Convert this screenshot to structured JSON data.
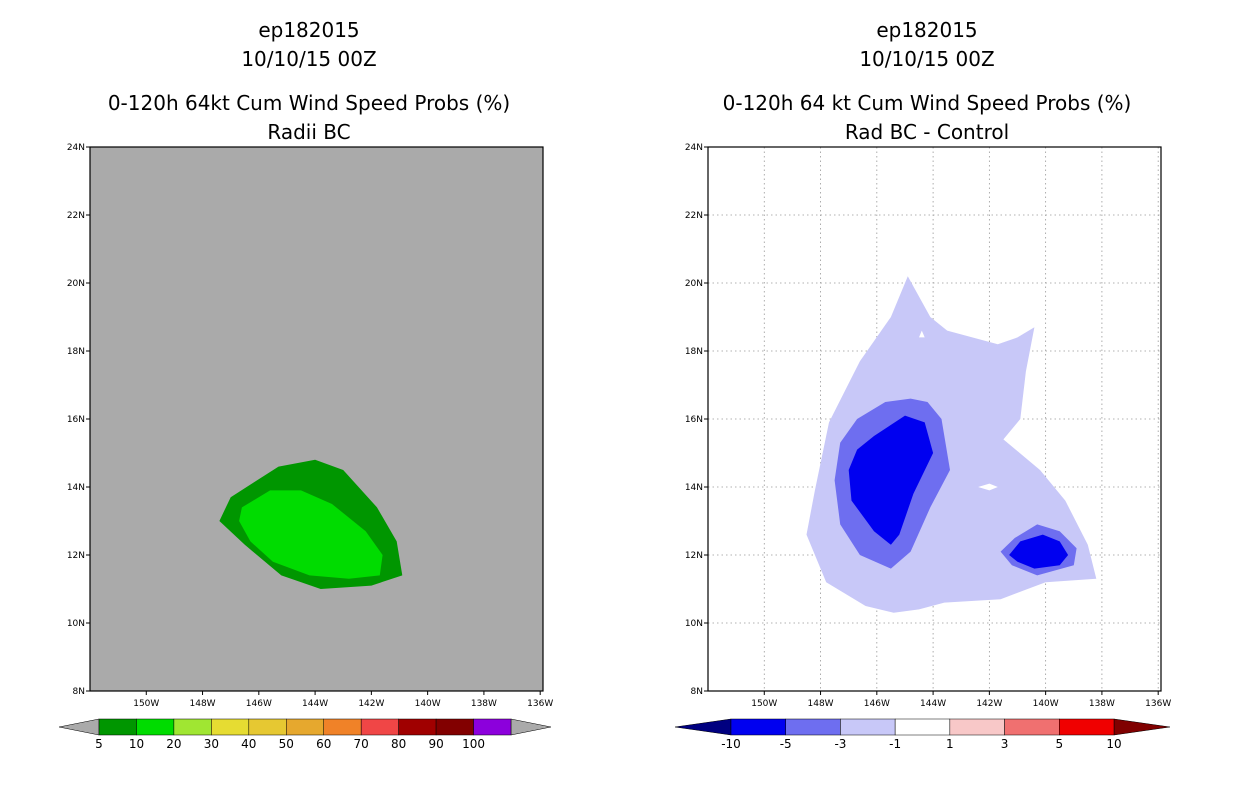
{
  "left": {
    "title_lines": [
      "ep182015",
      "10/10/15 00Z",
      "0-120h 64kt Cum Wind Speed Probs (%)",
      "Radii BC"
    ],
    "background_color": "#aaaaaa",
    "lat_labels": [
      "8N",
      "10N",
      "12N",
      "14N",
      "16N",
      "18N",
      "20N",
      "22N",
      "24N"
    ],
    "lon_labels": [
      "150W",
      "148W",
      "146W",
      "144W",
      "142W",
      "140W",
      "138W",
      "136W"
    ],
    "grid": false,
    "colorbar": {
      "labels": [
        "5",
        "10",
        "20",
        "30",
        "40",
        "50",
        "60",
        "70",
        "80",
        "90",
        "100"
      ],
      "colors": [
        "#009600",
        "#00dc00",
        "#a0e632",
        "#e6dc32",
        "#e6c832",
        "#e6a82e",
        "#f08228",
        "#f04646",
        "#a00000",
        "#820000",
        "#8c00dc"
      ],
      "under_color": "#aaaaaa",
      "over_color": "#aaaaaa"
    },
    "contours": [
      {
        "level": "5-10",
        "color": "#009600",
        "points": [
          [
            -147.0,
            13.7
          ],
          [
            -145.3,
            14.6
          ],
          [
            -144.0,
            14.8
          ],
          [
            -143.0,
            14.5
          ],
          [
            -141.8,
            13.4
          ],
          [
            -141.1,
            12.4
          ],
          [
            -140.9,
            11.4
          ],
          [
            -142.0,
            11.1
          ],
          [
            -143.8,
            11.0
          ],
          [
            -145.2,
            11.4
          ],
          [
            -146.5,
            12.3
          ],
          [
            -147.4,
            13.0
          ]
        ]
      },
      {
        "level": "10-20",
        "color": "#00dc00",
        "points": [
          [
            -146.6,
            13.4
          ],
          [
            -145.6,
            13.9
          ],
          [
            -144.5,
            13.9
          ],
          [
            -143.4,
            13.5
          ],
          [
            -142.2,
            12.7
          ],
          [
            -141.6,
            12.0
          ],
          [
            -141.7,
            11.4
          ],
          [
            -142.8,
            11.3
          ],
          [
            -144.2,
            11.4
          ],
          [
            -145.5,
            11.8
          ],
          [
            -146.3,
            12.4
          ],
          [
            -146.7,
            13.0
          ]
        ]
      }
    ]
  },
  "right": {
    "title_lines": [
      "ep182015",
      "10/10/15 00Z",
      "0-120h 64 kt Cum Wind Speed Probs (%)",
      "Rad BC - Control"
    ],
    "background_color": "#ffffff",
    "lat_labels": [
      "8N",
      "10N",
      "12N",
      "14N",
      "16N",
      "18N",
      "20N",
      "22N",
      "24N"
    ],
    "lon_labels": [
      "150W",
      "148W",
      "146W",
      "144W",
      "142W",
      "140W",
      "138W",
      "136W"
    ],
    "grid": true,
    "colorbar": {
      "labels": [
        "-10",
        "-5",
        "-3",
        "-1",
        "1",
        "3",
        "5",
        "10"
      ],
      "colors": [
        "#0000f0",
        "#6e6ef0",
        "#c8c8f8",
        "#ffffff",
        "#f8c8c8",
        "#f07070",
        "#f00000"
      ],
      "under_color": "#000080",
      "over_color": "#800000"
    },
    "contours": [
      {
        "level": "-3 to -1",
        "color": "#c8c8f8",
        "points": [
          [
            -146.6,
            17.7
          ],
          [
            -145.5,
            19.0
          ],
          [
            -144.9,
            20.2
          ],
          [
            -144.1,
            19.0
          ],
          [
            -143.5,
            18.6
          ],
          [
            -141.7,
            18.2
          ],
          [
            -141.0,
            18.4
          ],
          [
            -140.4,
            18.7
          ],
          [
            -140.7,
            17.4
          ],
          [
            -140.9,
            16.0
          ],
          [
            -141.5,
            15.4
          ],
          [
            -140.2,
            14.5
          ],
          [
            -139.3,
            13.6
          ],
          [
            -138.5,
            12.3
          ],
          [
            -138.2,
            11.3
          ],
          [
            -140.0,
            11.2
          ],
          [
            -141.6,
            10.7
          ],
          [
            -143.6,
            10.6
          ],
          [
            -144.5,
            10.4
          ],
          [
            -145.4,
            10.3
          ],
          [
            -146.4,
            10.5
          ],
          [
            -147.8,
            11.2
          ],
          [
            -148.5,
            12.6
          ],
          [
            -148.2,
            13.9
          ],
          [
            -147.7,
            15.9
          ]
        ]
      },
      {
        "level": "-5 to -3",
        "color": "#6e6ef0",
        "points": [
          [
            -146.7,
            16.0
          ],
          [
            -145.7,
            16.5
          ],
          [
            -144.8,
            16.6
          ],
          [
            -144.2,
            16.5
          ],
          [
            -143.7,
            16.0
          ],
          [
            -143.4,
            14.5
          ],
          [
            -144.1,
            13.4
          ],
          [
            -144.8,
            12.1
          ],
          [
            -145.5,
            11.6
          ],
          [
            -146.6,
            12.0
          ],
          [
            -147.3,
            12.9
          ],
          [
            -147.5,
            14.2
          ],
          [
            -147.3,
            15.3
          ]
        ]
      },
      {
        "level": "-10 to -5",
        "color": "#0000f0",
        "points": [
          [
            -146.1,
            15.5
          ],
          [
            -145.0,
            16.1
          ],
          [
            -144.3,
            15.9
          ],
          [
            -144.0,
            15.0
          ],
          [
            -144.7,
            13.8
          ],
          [
            -145.2,
            12.6
          ],
          [
            -145.5,
            12.3
          ],
          [
            -146.1,
            12.7
          ],
          [
            -146.9,
            13.6
          ],
          [
            -147.0,
            14.5
          ],
          [
            -146.7,
            15.1
          ]
        ]
      },
      {
        "level": "-5 to -3",
        "color": "#6e6ef0",
        "points": [
          [
            -141.1,
            12.5
          ],
          [
            -140.3,
            12.9
          ],
          [
            -139.5,
            12.7
          ],
          [
            -138.9,
            12.2
          ],
          [
            -139.0,
            11.7
          ],
          [
            -140.3,
            11.4
          ],
          [
            -141.2,
            11.7
          ],
          [
            -141.6,
            12.1
          ]
        ]
      },
      {
        "level": "-10 to -5",
        "color": "#0000f0",
        "points": [
          [
            -140.9,
            12.4
          ],
          [
            -140.1,
            12.6
          ],
          [
            -139.5,
            12.4
          ],
          [
            -139.2,
            12.0
          ],
          [
            -139.5,
            11.7
          ],
          [
            -140.4,
            11.6
          ],
          [
            -141.0,
            11.8
          ],
          [
            -141.3,
            12.0
          ]
        ]
      },
      {
        "level": "-1 to 1",
        "color": "#ffffff",
        "points": [
          [
            -144.4,
            18.6
          ],
          [
            -144.5,
            18.4
          ],
          [
            -144.3,
            18.4
          ]
        ]
      },
      {
        "level": "-1 to 1",
        "color": "#ffffff",
        "points": [
          [
            -142.4,
            14.0
          ],
          [
            -142.0,
            14.1
          ],
          [
            -141.7,
            14.0
          ],
          [
            -142.0,
            13.9
          ]
        ]
      }
    ]
  }
}
